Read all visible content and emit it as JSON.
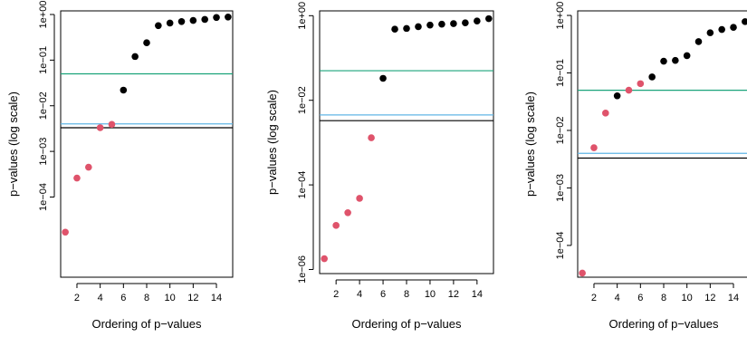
{
  "chart_data": [
    {
      "type": "scatter",
      "xlabel": "Ordering of p−values",
      "ylabel": "p−values (log scale)",
      "y_scale": "log10",
      "ylim": [
        1.75e-06,
        1.2
      ],
      "xlim": [
        0.6,
        15.4
      ],
      "xticks": [
        2,
        4,
        6,
        8,
        10,
        12,
        14
      ],
      "xtick_labels": [
        "2",
        "4",
        "6",
        "8",
        "10",
        "12",
        "14"
      ],
      "yticks": [
        0.0001,
        0.001,
        0.01,
        0.1,
        1
      ],
      "ytick_labels": [
        "1e−04",
        "1e−03",
        "1e−02",
        "1e−01",
        "1e+00"
      ],
      "hlines": [
        {
          "y": 0.05,
          "color": "#1aa37a"
        },
        {
          "y": 0.004,
          "color": "#61b6e6"
        },
        {
          "y": 0.0033,
          "color": "#000000"
        }
      ],
      "points": [
        {
          "x": 1,
          "y": 1.7e-05,
          "color": "#df536b"
        },
        {
          "x": 2,
          "y": 0.00026,
          "color": "#df536b"
        },
        {
          "x": 3,
          "y": 0.00045,
          "color": "#df536b"
        },
        {
          "x": 4,
          "y": 0.0033,
          "color": "#df536b"
        },
        {
          "x": 5,
          "y": 0.0039,
          "color": "#df536b"
        },
        {
          "x": 6,
          "y": 0.022,
          "color": "#000000"
        },
        {
          "x": 7,
          "y": 0.12,
          "color": "#000000"
        },
        {
          "x": 8,
          "y": 0.24,
          "color": "#000000"
        },
        {
          "x": 9,
          "y": 0.57,
          "color": "#000000"
        },
        {
          "x": 10,
          "y": 0.65,
          "color": "#000000"
        },
        {
          "x": 11,
          "y": 0.7,
          "color": "#000000"
        },
        {
          "x": 12,
          "y": 0.74,
          "color": "#000000"
        },
        {
          "x": 13,
          "y": 0.78,
          "color": "#000000"
        },
        {
          "x": 14,
          "y": 0.86,
          "color": "#000000"
        },
        {
          "x": 15,
          "y": 0.88,
          "color": "#000000"
        }
      ]
    },
    {
      "type": "scatter",
      "xlabel": "Ordering of p−values",
      "ylabel": "p−values (log scale)",
      "y_scale": "log10",
      "ylim": [
        8e-07,
        1.3
      ],
      "xlim": [
        0.6,
        15.4
      ],
      "xticks": [
        2,
        4,
        6,
        8,
        10,
        12,
        14
      ],
      "xtick_labels": [
        "2",
        "4",
        "6",
        "8",
        "10",
        "12",
        "14"
      ],
      "yticks": [
        1e-06,
        0.0001,
        0.01,
        1
      ],
      "ytick_labels": [
        "1e−06",
        "1e−04",
        "1e−02",
        "1e+00"
      ],
      "hlines": [
        {
          "y": 0.05,
          "color": "#1aa37a"
        },
        {
          "y": 0.0045,
          "color": "#61b6e6"
        },
        {
          "y": 0.0033,
          "color": "#000000"
        }
      ],
      "points": [
        {
          "x": 1,
          "y": 1.8e-06,
          "color": "#df536b"
        },
        {
          "x": 2,
          "y": 1.1e-05,
          "color": "#df536b"
        },
        {
          "x": 3,
          "y": 2.2e-05,
          "color": "#df536b"
        },
        {
          "x": 4,
          "y": 4.8e-05,
          "color": "#df536b"
        },
        {
          "x": 5,
          "y": 0.0013,
          "color": "#df536b"
        },
        {
          "x": 6,
          "y": 0.033,
          "color": "#000000"
        },
        {
          "x": 7,
          "y": 0.48,
          "color": "#000000"
        },
        {
          "x": 8,
          "y": 0.5,
          "color": "#000000"
        },
        {
          "x": 9,
          "y": 0.55,
          "color": "#000000"
        },
        {
          "x": 10,
          "y": 0.6,
          "color": "#000000"
        },
        {
          "x": 11,
          "y": 0.63,
          "color": "#000000"
        },
        {
          "x": 12,
          "y": 0.65,
          "color": "#000000"
        },
        {
          "x": 13,
          "y": 0.68,
          "color": "#000000"
        },
        {
          "x": 14,
          "y": 0.75,
          "color": "#000000"
        },
        {
          "x": 15,
          "y": 0.85,
          "color": "#000000"
        }
      ]
    },
    {
      "type": "scatter",
      "xlabel": "Ordering of p−values",
      "ylabel": "p−values (log scale)",
      "y_scale": "log10",
      "ylim": [
        2.8e-05,
        1.2
      ],
      "xlim": [
        0.6,
        15.4
      ],
      "xticks": [
        2,
        4,
        6,
        8,
        10,
        12,
        14
      ],
      "xtick_labels": [
        "2",
        "4",
        "6",
        "8",
        "10",
        "12",
        "14"
      ],
      "yticks": [
        0.0001,
        0.001,
        0.01,
        0.1,
        1
      ],
      "ytick_labels": [
        "1e−04",
        "1e−03",
        "1e−02",
        "1e−01",
        "1e+00"
      ],
      "hlines": [
        {
          "y": 0.05,
          "color": "#1aa37a"
        },
        {
          "y": 0.004,
          "color": "#61b6e6"
        },
        {
          "y": 0.0033,
          "color": "#000000"
        }
      ],
      "points": [
        {
          "x": 1,
          "y": 3.3e-05,
          "color": "#df536b"
        },
        {
          "x": 2,
          "y": 0.005,
          "color": "#df536b"
        },
        {
          "x": 3,
          "y": 0.02,
          "color": "#df536b"
        },
        {
          "x": 4,
          "y": 0.04,
          "color": "#000000"
        },
        {
          "x": 5,
          "y": 0.05,
          "color": "#df536b"
        },
        {
          "x": 6,
          "y": 0.065,
          "color": "#df536b"
        },
        {
          "x": 7,
          "y": 0.085,
          "color": "#000000"
        },
        {
          "x": 8,
          "y": 0.16,
          "color": "#000000"
        },
        {
          "x": 9,
          "y": 0.165,
          "color": "#000000"
        },
        {
          "x": 10,
          "y": 0.2,
          "color": "#000000"
        },
        {
          "x": 11,
          "y": 0.35,
          "color": "#000000"
        },
        {
          "x": 12,
          "y": 0.5,
          "color": "#000000"
        },
        {
          "x": 13,
          "y": 0.57,
          "color": "#000000"
        },
        {
          "x": 14,
          "y": 0.62,
          "color": "#000000"
        },
        {
          "x": 15,
          "y": 0.78,
          "color": "#000000"
        }
      ]
    }
  ]
}
